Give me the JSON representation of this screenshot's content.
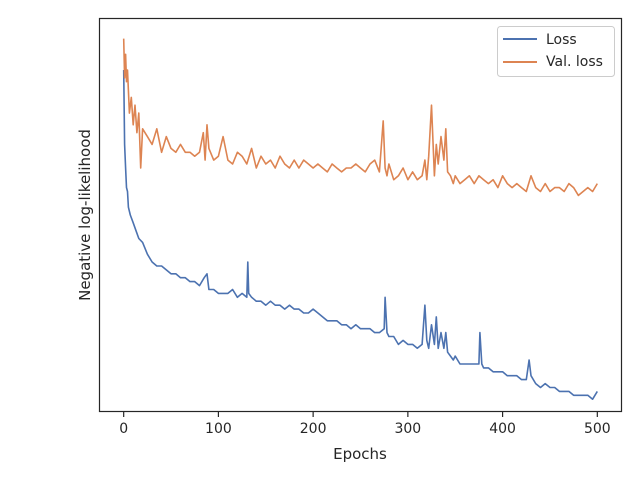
{
  "chart_data": {
    "type": "line",
    "title": "",
    "xlabel": "Epochs",
    "ylabel": "Negative log-likelihood",
    "xlim": [
      -25,
      525
    ],
    "ylim": [
      0,
      100
    ],
    "xticks": [
      0,
      100,
      200,
      300,
      400,
      500
    ],
    "y_tick_labels_shown": false,
    "grid": false,
    "legend": "top-right",
    "series": [
      {
        "name": "Loss",
        "color": "#4c72b0",
        "x": [
          0,
          1,
          2,
          3,
          4,
          5,
          7,
          10,
          13,
          16,
          20,
          25,
          30,
          35,
          40,
          45,
          50,
          55,
          60,
          65,
          70,
          75,
          80,
          85,
          88,
          90,
          95,
          100,
          105,
          110,
          115,
          120,
          125,
          130,
          131,
          132,
          135,
          140,
          145,
          150,
          155,
          160,
          165,
          170,
          175,
          180,
          185,
          190,
          195,
          200,
          205,
          210,
          215,
          220,
          225,
          230,
          235,
          240,
          245,
          250,
          255,
          260,
          265,
          270,
          275,
          276,
          278,
          280,
          285,
          290,
          295,
          300,
          305,
          310,
          315,
          318,
          320,
          322,
          325,
          328,
          330,
          332,
          335,
          338,
          340,
          342,
          345,
          348,
          350,
          355,
          360,
          365,
          370,
          375,
          376,
          378,
          380,
          385,
          390,
          395,
          400,
          405,
          410,
          415,
          420,
          425,
          428,
          430,
          435,
          440,
          445,
          450,
          455,
          460,
          465,
          470,
          475,
          480,
          485,
          490,
          495,
          500
        ],
        "values": [
          87,
          68,
          62,
          57,
          56,
          52,
          50,
          48,
          46,
          44,
          43,
          40,
          38,
          37,
          37,
          36,
          35,
          35,
          34,
          34,
          33,
          33,
          32,
          34,
          35,
          31,
          31,
          30,
          30,
          30,
          31,
          29,
          30,
          29,
          38,
          30,
          29,
          28,
          28,
          27,
          28,
          27,
          27,
          26,
          27,
          26,
          26,
          25,
          25,
          26,
          25,
          24,
          23,
          23,
          23,
          22,
          22,
          21,
          22,
          21,
          21,
          21,
          20,
          20,
          21,
          29,
          20,
          19,
          19,
          17,
          18,
          17,
          17,
          16,
          17,
          27,
          18,
          16,
          22,
          17,
          24,
          16,
          20,
          16,
          20,
          15,
          14,
          13,
          14,
          12,
          12,
          12,
          12,
          12,
          20,
          12,
          11,
          11,
          10,
          10,
          10,
          9,
          9,
          9,
          8,
          8,
          13,
          9,
          7,
          6,
          7,
          6,
          6,
          5,
          5,
          5,
          4,
          4,
          4,
          4,
          3,
          5
        ]
      },
      {
        "name": "Val. loss",
        "color": "#dd8452",
        "x": [
          0,
          1,
          2,
          3,
          4,
          6,
          8,
          10,
          12,
          14,
          16,
          18,
          20,
          25,
          30,
          35,
          40,
          45,
          50,
          55,
          60,
          65,
          70,
          75,
          80,
          84,
          86,
          88,
          90,
          95,
          100,
          105,
          110,
          115,
          120,
          125,
          130,
          135,
          140,
          145,
          150,
          155,
          160,
          165,
          170,
          175,
          180,
          185,
          190,
          195,
          200,
          205,
          210,
          215,
          220,
          225,
          230,
          235,
          240,
          245,
          250,
          255,
          260,
          265,
          270,
          274,
          276,
          278,
          280,
          285,
          290,
          295,
          300,
          305,
          310,
          315,
          318,
          320,
          322,
          325,
          328,
          330,
          332,
          335,
          338,
          340,
          342,
          345,
          348,
          350,
          355,
          360,
          365,
          370,
          375,
          380,
          385,
          390,
          395,
          400,
          405,
          410,
          415,
          420,
          425,
          430,
          435,
          440,
          445,
          450,
          455,
          460,
          465,
          470,
          475,
          480,
          485,
          490,
          495,
          500
        ],
        "values": [
          95,
          85,
          91,
          84,
          87,
          76,
          80,
          73,
          78,
          71,
          76,
          62,
          72,
          70,
          68,
          72,
          66,
          70,
          67,
          66,
          68,
          66,
          66,
          65,
          66,
          71,
          64,
          73,
          67,
          64,
          65,
          70,
          64,
          63,
          66,
          65,
          63,
          67,
          62,
          65,
          63,
          64,
          62,
          65,
          63,
          62,
          64,
          62,
          64,
          63,
          62,
          63,
          62,
          61,
          63,
          62,
          61,
          62,
          62,
          63,
          62,
          61,
          63,
          64,
          61,
          74,
          62,
          60,
          63,
          59,
          60,
          62,
          59,
          61,
          59,
          60,
          64,
          59,
          65,
          78,
          60,
          68,
          63,
          70,
          64,
          72,
          61,
          60,
          58,
          60,
          58,
          59,
          60,
          58,
          60,
          59,
          58,
          59,
          57,
          60,
          58,
          57,
          58,
          57,
          56,
          60,
          57,
          56,
          58,
          56,
          57,
          57,
          56,
          58,
          57,
          55,
          56,
          57,
          56,
          58
        ]
      }
    ]
  }
}
